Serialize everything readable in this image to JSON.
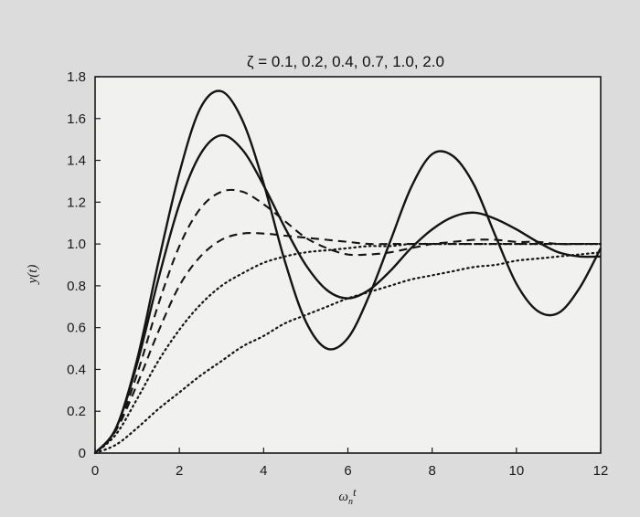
{
  "chart_data": {
    "type": "line",
    "title": "ζ = 0.1, 0.2, 0.4, 0.7, 1.0, 2.0",
    "xlabel": "ω_n t",
    "xlabel_main": "ω",
    "xlabel_sub": "n",
    "xlabel_end": "t",
    "ylabel": "y(t)",
    "xlim": [
      0,
      12
    ],
    "ylim": [
      0,
      1.8
    ],
    "x_ticks": [
      "0",
      "2",
      "4",
      "6",
      "8",
      "10",
      "12"
    ],
    "y_ticks": [
      "0",
      "0.2",
      "0.4",
      "0.6",
      "0.8",
      "1.0",
      "1.2",
      "1.4",
      "1.6",
      "1.8"
    ],
    "grid": false,
    "series": [
      {
        "zeta": 0.1,
        "style": "solid",
        "x": [
          0,
          0.5,
          1,
          1.5,
          2,
          2.5,
          3,
          3.5,
          4,
          4.5,
          5,
          5.5,
          6,
          6.5,
          7,
          7.5,
          8,
          8.5,
          9,
          9.5,
          10,
          10.5,
          11,
          11.5,
          12
        ],
        "values": [
          0,
          0.12,
          0.45,
          0.91,
          1.34,
          1.65,
          1.73,
          1.59,
          1.29,
          0.92,
          0.63,
          0.5,
          0.55,
          0.75,
          1.01,
          1.27,
          1.43,
          1.42,
          1.28,
          1.04,
          0.81,
          0.68,
          0.67,
          0.79,
          0.98
        ]
      },
      {
        "zeta": 0.2,
        "style": "solid",
        "x": [
          0,
          0.5,
          1,
          1.5,
          2,
          2.5,
          3,
          3.5,
          4,
          4.5,
          5,
          5.5,
          6,
          6.5,
          7,
          7.5,
          8,
          8.5,
          9,
          9.5,
          10,
          10.5,
          11,
          11.5,
          12
        ],
        "values": [
          0,
          0.12,
          0.43,
          0.83,
          1.19,
          1.43,
          1.52,
          1.45,
          1.28,
          1.08,
          0.9,
          0.78,
          0.74,
          0.78,
          0.87,
          0.98,
          1.07,
          1.13,
          1.15,
          1.12,
          1.07,
          1.01,
          0.96,
          0.94,
          0.94
        ]
      },
      {
        "zeta": 0.4,
        "style": "dashed",
        "x": [
          0,
          0.5,
          1,
          1.5,
          2,
          2.5,
          3,
          3.5,
          4,
          4.5,
          5,
          5.5,
          6,
          6.5,
          7,
          7.5,
          8,
          8.5,
          9,
          9.5,
          10,
          10.5,
          11,
          11.5,
          12
        ],
        "values": [
          0,
          0.11,
          0.38,
          0.71,
          0.99,
          1.17,
          1.25,
          1.25,
          1.19,
          1.11,
          1.03,
          0.98,
          0.95,
          0.95,
          0.96,
          0.98,
          1.0,
          1.01,
          1.02,
          1.02,
          1.01,
          1.01,
          1.0,
          1.0,
          1.0
        ]
      },
      {
        "zeta": 0.7,
        "style": "dashed",
        "x": [
          0,
          0.5,
          1,
          1.5,
          2,
          2.5,
          3,
          3.5,
          4,
          4.5,
          5,
          5.5,
          6,
          6.5,
          7,
          7.5,
          8,
          8.5,
          9,
          9.5,
          10,
          10.5,
          11,
          11.5,
          12
        ],
        "values": [
          0,
          0.11,
          0.33,
          0.58,
          0.8,
          0.94,
          1.02,
          1.05,
          1.05,
          1.04,
          1.03,
          1.02,
          1.01,
          1.0,
          1.0,
          1.0,
          1.0,
          1.0,
          1.0,
          1.0,
          1.0,
          1.0,
          1.0,
          1.0,
          1.0
        ]
      },
      {
        "zeta": 1.0,
        "style": "dotted",
        "x": [
          0,
          0.5,
          1,
          1.5,
          2,
          2.5,
          3,
          3.5,
          4,
          4.5,
          5,
          5.5,
          6,
          6.5,
          7,
          7.5,
          8,
          8.5,
          9,
          9.5,
          10,
          10.5,
          11,
          11.5,
          12
        ],
        "values": [
          0,
          0.09,
          0.26,
          0.44,
          0.59,
          0.71,
          0.8,
          0.86,
          0.91,
          0.94,
          0.96,
          0.97,
          0.98,
          0.99,
          0.99,
          1.0,
          1.0,
          1.0,
          1.0,
          1.0,
          1.0,
          1.0,
          1.0,
          1.0,
          1.0
        ]
      },
      {
        "zeta": 2.0,
        "style": "dotted",
        "x": [
          0,
          0.5,
          1,
          1.5,
          2,
          2.5,
          3,
          3.5,
          4,
          4.5,
          5,
          5.5,
          6,
          6.5,
          7,
          7.5,
          8,
          8.5,
          9,
          9.5,
          10,
          10.5,
          11,
          11.5,
          12
        ],
        "values": [
          0,
          0.04,
          0.12,
          0.21,
          0.29,
          0.37,
          0.44,
          0.51,
          0.56,
          0.62,
          0.66,
          0.7,
          0.74,
          0.77,
          0.8,
          0.83,
          0.85,
          0.87,
          0.89,
          0.9,
          0.92,
          0.93,
          0.94,
          0.95,
          0.96
        ]
      }
    ]
  }
}
